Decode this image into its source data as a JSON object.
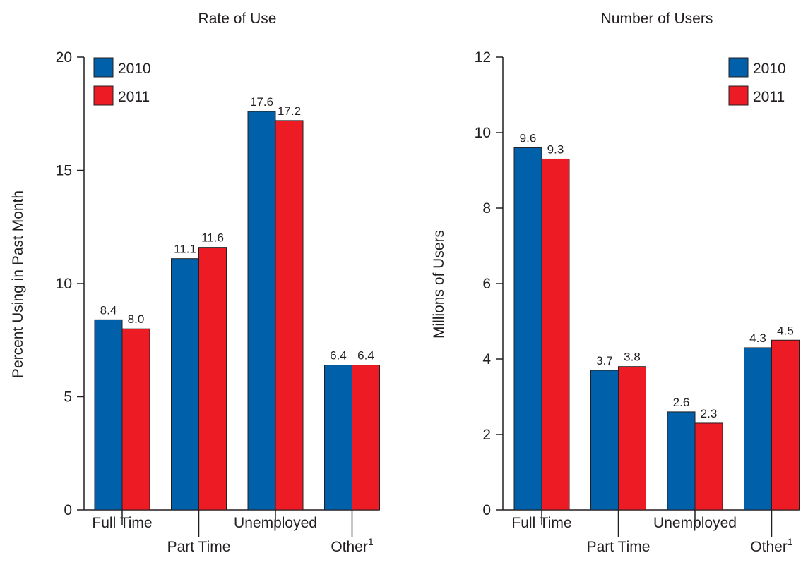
{
  "chart_data": [
    {
      "type": "bar",
      "title": "Rate of Use",
      "ylabel": "Percent Using in Past Month",
      "xlabel": "",
      "ylim": [
        0,
        20
      ],
      "yticks": [
        "0",
        "5",
        "10",
        "15",
        "20"
      ],
      "categories": [
        "Full Time",
        "Part Time",
        "Unemployed",
        "Other"
      ],
      "category_superscripts": [
        "",
        "",
        "",
        "1"
      ],
      "series": [
        {
          "name": "2010",
          "color": "#0061aa",
          "values": [
            8.4,
            11.1,
            17.6,
            6.4
          ],
          "labels": [
            "8.4",
            "11.1",
            "17.6",
            "6.4"
          ]
        },
        {
          "name": "2011",
          "color": "#ed1c24",
          "values": [
            8.0,
            11.6,
            17.2,
            6.4
          ],
          "labels": [
            "8.0",
            "11.6",
            "17.2",
            "6.4"
          ]
        }
      ],
      "legend_position": "top-left",
      "grid": false
    },
    {
      "type": "bar",
      "title": "Number of Users",
      "ylabel": "Millions of Users",
      "xlabel": "",
      "ylim": [
        0,
        12
      ],
      "yticks": [
        "0",
        "2",
        "4",
        "6",
        "8",
        "10",
        "12"
      ],
      "categories": [
        "Full Time",
        "Part Time",
        "Unemployed",
        "Other"
      ],
      "category_superscripts": [
        "",
        "",
        "",
        "1"
      ],
      "series": [
        {
          "name": "2010",
          "color": "#0061aa",
          "values": [
            9.6,
            3.7,
            2.6,
            4.3
          ],
          "labels": [
            "9.6",
            "3.7",
            "2.6",
            "4.3"
          ]
        },
        {
          "name": "2011",
          "color": "#ed1c24",
          "values": [
            9.3,
            3.8,
            2.3,
            4.5
          ],
          "labels": [
            "9.3",
            "3.8",
            "2.3",
            "4.5"
          ]
        }
      ],
      "legend_position": "top-right",
      "grid": false
    }
  ]
}
